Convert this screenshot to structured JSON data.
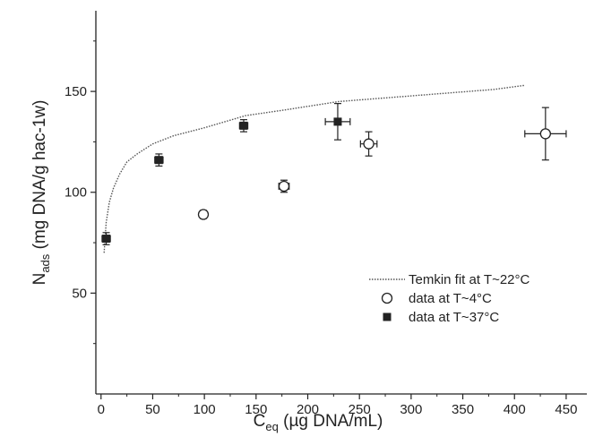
{
  "chart_data": {
    "type": "scatter",
    "xlabel": {
      "main": "C",
      "sub": "eq",
      "rest": " (µg DNA/mL)"
    },
    "ylabel": {
      "main": "N",
      "sub": "ads",
      "rest": " (mg DNA/g hac-1w)"
    },
    "xlim": [
      -5,
      470
    ],
    "ylim": [
      0,
      190
    ],
    "xticks": [
      0,
      50,
      100,
      150,
      200,
      250,
      300,
      350,
      400,
      450
    ],
    "yticks": [
      50,
      100,
      150
    ],
    "grid": false,
    "legend_position": "lower-right",
    "series": [
      {
        "name": "Temkin fit at T~22°C",
        "kind": "line",
        "style": "dotted",
        "color": "#555555",
        "x": [
          3,
          5,
          8,
          12,
          18,
          25,
          35,
          50,
          70,
          100,
          140,
          180,
          230,
          280,
          330,
          380,
          410
        ],
        "y": [
          70,
          85,
          95,
          102,
          109,
          115,
          119,
          124,
          128,
          132,
          138,
          141,
          145,
          147,
          149,
          151,
          153
        ]
      },
      {
        "name": "data at T~4°C",
        "kind": "points",
        "marker": "open-circle",
        "color": "#222222",
        "points": [
          {
            "x": 99,
            "y": 89,
            "xerr": 3,
            "yerr": 2
          },
          {
            "x": 177,
            "y": 103,
            "xerr": 5,
            "yerr": 3
          },
          {
            "x": 259,
            "y": 124,
            "xerr": 8,
            "yerr": 6
          },
          {
            "x": 430,
            "y": 129,
            "xerr": 20,
            "yerr": 13
          }
        ]
      },
      {
        "name": "data at T~37°C",
        "kind": "points",
        "marker": "filled-square",
        "color": "#222222",
        "points": [
          {
            "x": 5,
            "y": 77,
            "xerr": 4,
            "yerr": 3
          },
          {
            "x": 56,
            "y": 116,
            "xerr": 4,
            "yerr": 3
          },
          {
            "x": 138,
            "y": 133,
            "xerr": 4,
            "yerr": 3
          },
          {
            "x": 229,
            "y": 135,
            "xerr": 12,
            "yerr": 9
          }
        ]
      }
    ]
  }
}
